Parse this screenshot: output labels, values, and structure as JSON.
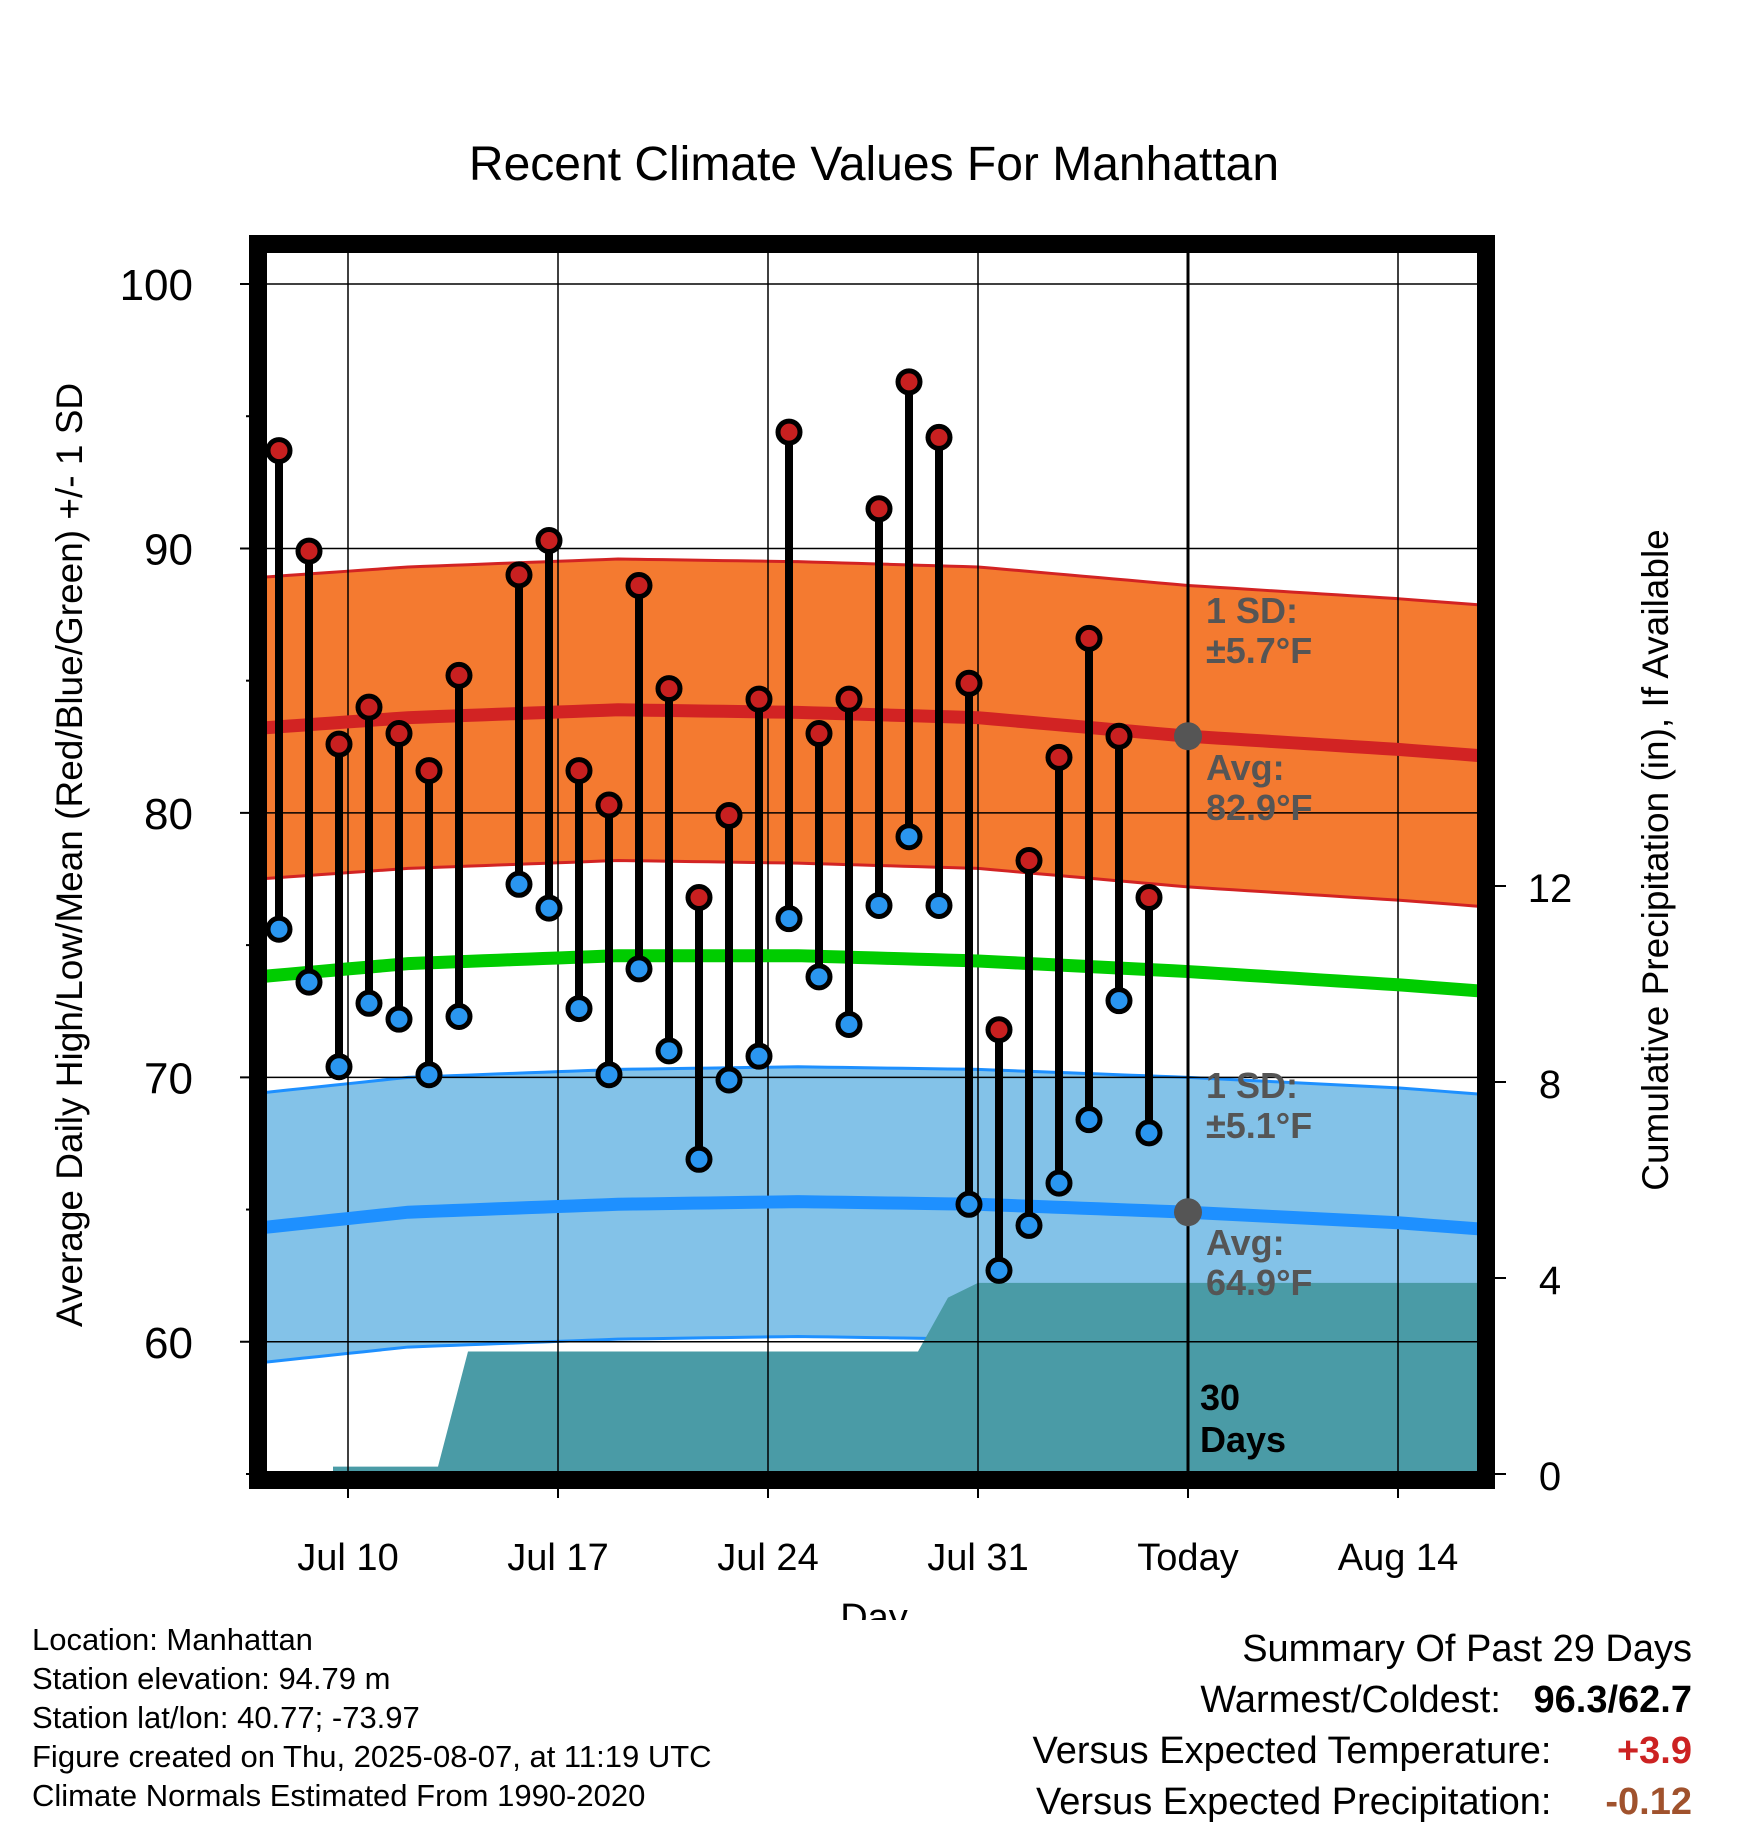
{
  "chart_data": {
    "type": "line",
    "title": "Recent Climate Values For Manhattan",
    "xlabel": "Day",
    "ylabel": "Average Daily High/Low/Mean (Red/Blue/Green) +/- 1 SD",
    "y2label": "Cumulative Precipitation (in), If Available",
    "ylim": [
      55,
      102
    ],
    "y2lim": [
      0,
      17.6
    ],
    "xlim_days": [
      0,
      46
    ],
    "x_tick_days": [
      3,
      10,
      17,
      24,
      31,
      38
    ],
    "x_tick_labels": [
      "Jul 10",
      "Jul 17",
      "Jul 24",
      "Jul 31",
      "Today",
      "Aug 14"
    ],
    "y_ticks": [
      60,
      70,
      80,
      90,
      100
    ],
    "y_minor_ticks": [
      55,
      65,
      75,
      85,
      95
    ],
    "y2_ticks": [
      0,
      4,
      8,
      12
    ],
    "today_day": 31,
    "dates_first": "Jul 7",
    "days": [
      0,
      1,
      2,
      3,
      4,
      5,
      6,
      7,
      8,
      9,
      10,
      11,
      12,
      13,
      14,
      15,
      16,
      17,
      18,
      19,
      20,
      21,
      22,
      23,
      24,
      25,
      26,
      27,
      28,
      29,
      30
    ],
    "highs": [
      93.7,
      89.9,
      82.6,
      84.0,
      83.0,
      81.6,
      85.2,
      null,
      89.0,
      90.3,
      81.6,
      80.3,
      88.6,
      84.7,
      76.8,
      79.9,
      84.3,
      94.4,
      83.0,
      84.3,
      91.5,
      96.3,
      94.2,
      84.9,
      71.8,
      78.2,
      82.1,
      86.6,
      82.9,
      76.8,
      null
    ],
    "lows": [
      75.6,
      73.6,
      70.4,
      72.8,
      72.2,
      70.1,
      72.3,
      null,
      77.3,
      76.4,
      72.6,
      70.1,
      74.1,
      71.0,
      66.9,
      69.9,
      70.8,
      76.0,
      73.8,
      72.0,
      76.5,
      79.1,
      76.5,
      65.2,
      62.7,
      64.4,
      66.0,
      68.4,
      72.9,
      67.9,
      null
    ],
    "normal_high": {
      "days": [
        0,
        5,
        12,
        18,
        24,
        31,
        38,
        45
      ],
      "values": [
        83.2,
        83.6,
        83.9,
        83.8,
        83.6,
        82.9,
        82.4,
        81.8
      ]
    },
    "normal_high_sd": 5.7,
    "normal_mean": {
      "days": [
        0,
        5,
        12,
        18,
        24,
        31,
        38,
        45
      ],
      "values": [
        73.8,
        74.3,
        74.6,
        74.6,
        74.4,
        74.0,
        73.5,
        72.9
      ]
    },
    "normal_low": {
      "days": [
        0,
        5,
        12,
        18,
        24,
        31,
        38,
        45
      ],
      "values": [
        64.3,
        64.9,
        65.2,
        65.3,
        65.2,
        64.9,
        64.5,
        63.9
      ]
    },
    "normal_low_sd": 5.1,
    "precip_cumulative": {
      "days": [
        2.5,
        6,
        7,
        31,
        31,
        46
      ],
      "steps": [
        [
          0,
          0
        ],
        [
          2.5,
          0
        ],
        [
          2.5,
          0.15
        ],
        [
          6,
          0.15
        ],
        [
          7,
          2.5
        ],
        [
          22,
          2.5
        ],
        [
          23,
          3.6
        ],
        [
          24,
          3.9
        ],
        [
          46,
          3.9
        ]
      ]
    },
    "annotations": {
      "high_sd_label": "1 SD:",
      "high_sd_value": "±5.7°F",
      "high_avg_label": "Avg:",
      "high_avg_value": "82.9°F",
      "low_sd_label": "1 SD:",
      "low_sd_value": "±5.1°F",
      "low_avg_label": "Avg:",
      "low_avg_value": "64.9°F",
      "period_line1": "30",
      "period_line2": "Days"
    },
    "colors": {
      "high_band": "#f47a30",
      "high_line": "#d22323",
      "low_band": "#83c2e8",
      "low_line": "#1e90ff",
      "mean_line": "#00cc00",
      "precip": "#4a9ba6",
      "high_dot": "#c82020",
      "low_dot": "#2a96f0",
      "annotation": "#555555"
    }
  },
  "footer": {
    "location": "Location: Manhattan",
    "elevation": "Station elevation: 94.79 m",
    "latlon": "Station lat/lon: 40.77; -73.97",
    "created": "Figure created on Thu, 2025-08-07, at 11:19 UTC",
    "normals": "Climate Normals Estimated From 1990-2020"
  },
  "summary": {
    "heading": "Summary Of Past 29 Days",
    "warm_cold_label": "Warmest/Coldest:",
    "warmest": "96.3",
    "slash": "/",
    "coldest": "62.7",
    "temp_label": "Versus Expected Temperature:",
    "temp_value": "+3.9",
    "temp_color": "#cc2222",
    "precip_label": "Versus Expected Precipitation:",
    "precip_value": "-0.12",
    "precip_color": "#a0522d"
  }
}
